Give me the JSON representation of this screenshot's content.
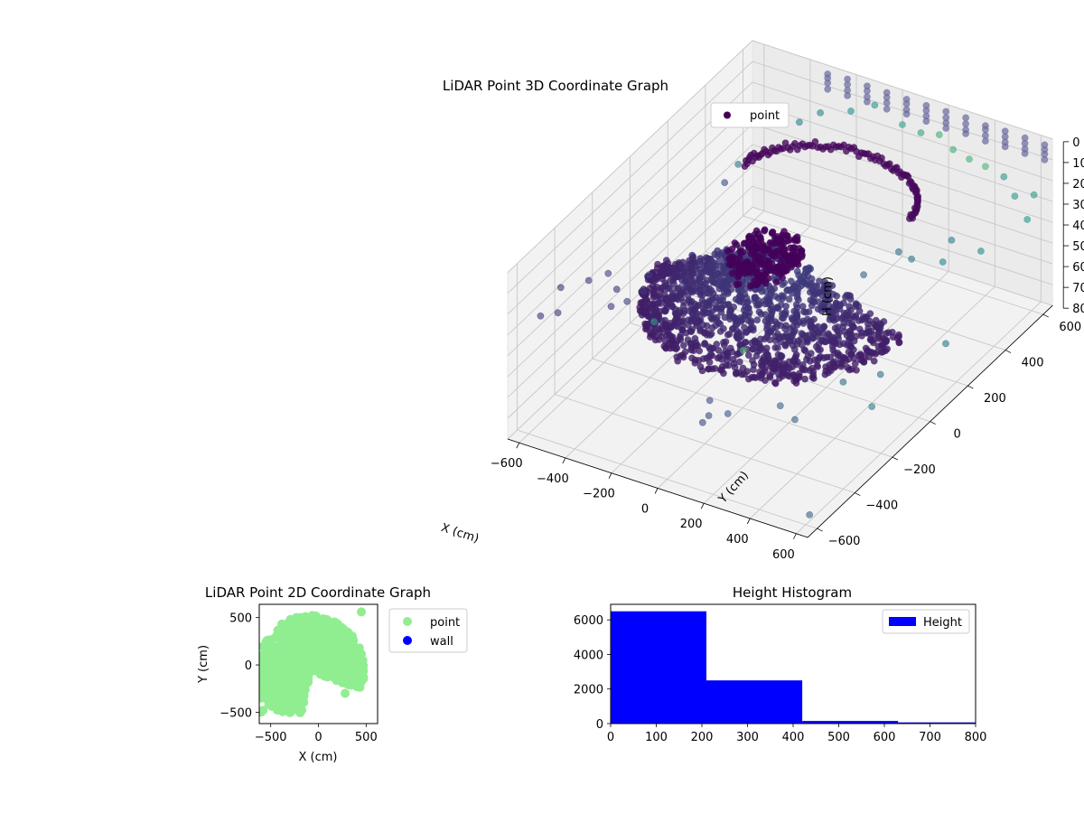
{
  "chart_data": [
    {
      "type": "scatter",
      "projection": "3d",
      "title": "LiDAR Point 3D Coordinate Graph",
      "xlabel": "X (cm)",
      "ylabel": "Y (cm)",
      "zlabel": "H (cm)",
      "xlim": [
        -650,
        650
      ],
      "ylim": [
        -650,
        650
      ],
      "zlim": [
        800,
        0
      ],
      "xticks": [
        "−600",
        "−400",
        "−200",
        "0",
        "200",
        "400",
        "600"
      ],
      "yticks": [
        "−600",
        "−400",
        "−200",
        "0",
        "200",
        "400",
        "600"
      ],
      "zticks": [
        "0",
        "100",
        "200",
        "300",
        "400",
        "500",
        "600",
        "700",
        "800"
      ],
      "colormap": "viridis",
      "grid": true,
      "legend": {
        "position": "upper right",
        "entries": [
          {
            "label": "point",
            "color": "#440154"
          }
        ]
      },
      "series": [
        {
          "name": "point",
          "dome_points": {
            "radius_cm": 520,
            "y_min_cm": -420,
            "h_top_cm": 160,
            "h_rim_cm": 440
          },
          "ring_points": {
            "radius_cm": 420,
            "h_cm": 120,
            "y_min_cm": 250
          },
          "wall_points": [
            [
              -640,
              -380,
              300
            ],
            [
              -630,
              -500,
              330
            ],
            [
              -620,
              -420,
              380
            ],
            [
              -560,
              -330,
              280
            ],
            [
              -500,
              -300,
              250
            ],
            [
              -500,
              -200,
              470
            ],
            [
              -470,
              -120,
              400
            ],
            [
              -520,
              -260,
              450
            ],
            [
              -610,
              -120,
              520
            ],
            [
              -560,
              -40,
              580
            ],
            [
              -520,
              60,
              640
            ],
            [
              -440,
              20,
              560
            ],
            [
              -420,
              220,
              230
            ],
            [
              -410,
              280,
              190
            ],
            [
              -300,
              470,
              110
            ],
            [
              -250,
              520,
              90
            ],
            [
              -150,
              560,
              80
            ],
            [
              -80,
              600,
              60
            ],
            [
              40,
              600,
              110
            ],
            [
              120,
              600,
              120
            ],
            [
              200,
              600,
              100
            ],
            [
              260,
              600,
              150
            ],
            [
              330,
              600,
              170
            ],
            [
              400,
              600,
              180
            ],
            [
              480,
              600,
              200
            ],
            [
              560,
              560,
              230
            ],
            [
              610,
              600,
              240
            ],
            [
              630,
              540,
              300
            ],
            [
              560,
              380,
              340
            ],
            [
              460,
              300,
              360
            ],
            [
              400,
              420,
              380
            ],
            [
              300,
              330,
              430
            ],
            [
              220,
              360,
              450
            ],
            [
              150,
              260,
              500
            ],
            [
              620,
              120,
              540
            ],
            [
              500,
              -80,
              560
            ],
            [
              420,
              -180,
              540
            ],
            [
              610,
              -260,
              520
            ],
            [
              350,
              -350,
              600
            ],
            [
              270,
              -330,
              580
            ],
            [
              100,
              -400,
              620
            ],
            [
              -60,
              -300,
              700
            ],
            [
              -40,
              -330,
              740
            ],
            [
              -50,
              -350,
              760
            ],
            [
              -340,
              100,
              650
            ],
            [
              330,
              -600,
              60
            ],
            [
              -40,
              -620,
              40
            ],
            [
              650,
              -640,
              700
            ]
          ],
          "roof_points": {
            "x_range_cm": [
              -300,
              640
            ],
            "y_cm": [
              600,
              640
            ],
            "h_cm": [
              0,
              80
            ]
          }
        }
      ]
    },
    {
      "type": "scatter",
      "title": "LiDAR Point 2D Coordinate Graph",
      "xlabel": "X (cm)",
      "ylabel": "Y (cm)",
      "xlim": [
        -620,
        620
      ],
      "ylim": [
        -620,
        640
      ],
      "xticks": [
        "−500",
        "0",
        "500"
      ],
      "yticks": [
        "−500",
        "0",
        "500"
      ],
      "legend": {
        "position": "outside right",
        "entries": [
          {
            "label": "point",
            "color": "#90ee90"
          },
          {
            "label": "wall",
            "color": "#0000ff"
          }
        ]
      },
      "series": [
        {
          "name": "point",
          "color": "#90ee90",
          "region": {
            "x_range_cm": [
              -600,
              520
            ],
            "y_range_cm": [
              -520,
              580
            ]
          }
        },
        {
          "name": "wall",
          "color": "#0000ff",
          "values": []
        }
      ]
    },
    {
      "type": "bar",
      "title": "Height Histogram",
      "xlim": [
        0,
        800
      ],
      "ylim": [
        0,
        6900
      ],
      "xticks": [
        "0",
        "100",
        "200",
        "300",
        "400",
        "500",
        "600",
        "700",
        "800"
      ],
      "yticks": [
        "0",
        "2000",
        "4000",
        "6000"
      ],
      "legend": {
        "position": "upper right",
        "entries": [
          {
            "label": "Height",
            "color": "#0000ff"
          }
        ]
      },
      "bins": [
        [
          0,
          210
        ],
        [
          210,
          420
        ],
        [
          420,
          630
        ],
        [
          630,
          840
        ]
      ],
      "values": [
        6500,
        2500,
        150,
        70
      ],
      "color": "#0000ff"
    }
  ]
}
